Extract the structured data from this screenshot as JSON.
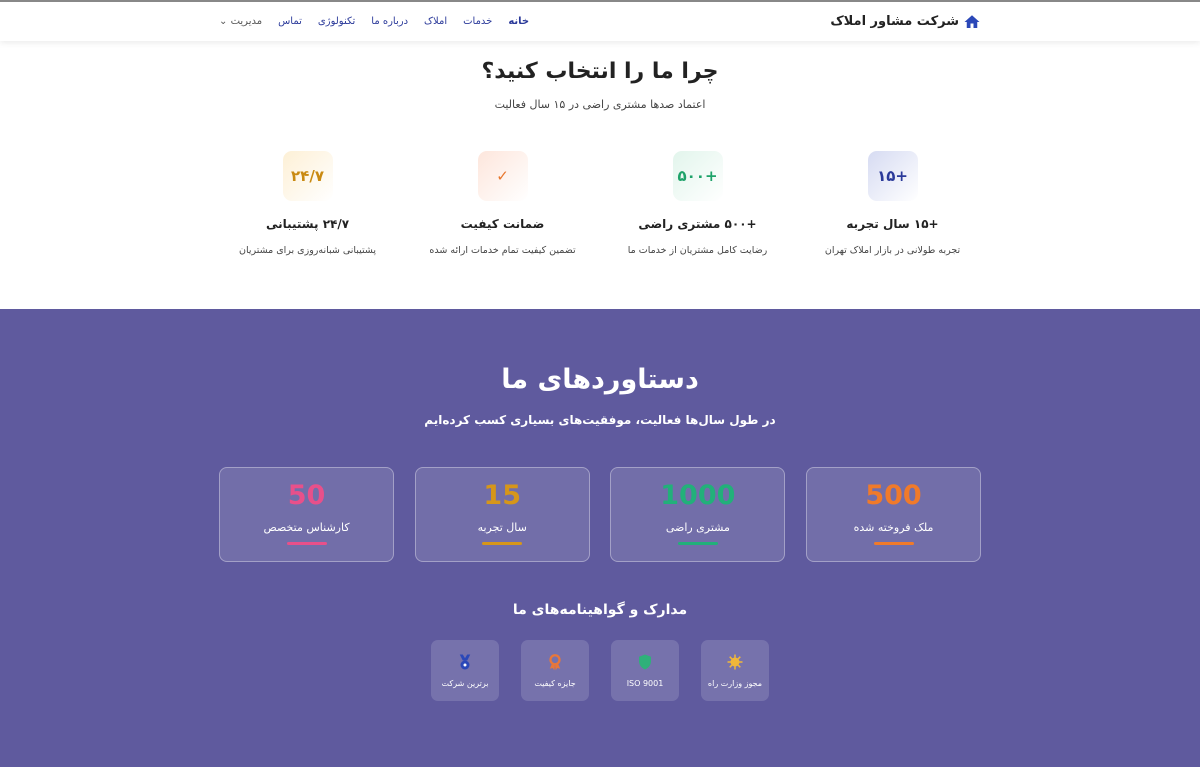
{
  "nav": {
    "brand": "شرکت مشاور املاک",
    "links": [
      "خانه",
      "خدمات",
      "املاک",
      "درباره ما",
      "تکنولوژی",
      "تماس"
    ],
    "dropdown": "مدیریت"
  },
  "why": {
    "title": "چرا ما را انتخاب کنید؟",
    "subtitle": "اعتماد صدها مشتری راضی در ۱۵ سال فعالیت",
    "features": [
      {
        "icon": "+۱۵",
        "title": "+۱۵ سال تجربه",
        "desc": "تجربه طولانی در بازار املاک تهران",
        "color": "#2b3a9a",
        "bg": "#d6dbf2"
      },
      {
        "icon": "+۵۰۰",
        "title": "+۵۰۰ مشتری راضی",
        "desc": "رضایت کامل مشتریان از خدمات ما",
        "color": "#1fa36a",
        "bg": "#e2f5ec"
      },
      {
        "icon": "✓",
        "title": "ضمانت کیفیت",
        "desc": "تضمین کیفیت تمام خدمات ارائه شده",
        "color": "#e8772e",
        "bg": "#fde6dc"
      },
      {
        "icon": "۲۴/۷",
        "title": "۲۴/۷ پشتیبانی",
        "desc": "پشتیبانی شبانه‌روزی برای مشتریان",
        "color": "#c98a12",
        "bg": "#fdf0d6"
      }
    ]
  },
  "achievements": {
    "title": "دستاوردهای ما",
    "subtitle": "در طول سال‌ها فعالیت، موفقیت‌های بسیاری کسب کرده‌ایم",
    "stats": [
      {
        "value": "500",
        "label": "ملک فروخته شده",
        "color": "#f07a2a"
      },
      {
        "value": "1000",
        "label": "مشتری راضی",
        "color": "#22b07a"
      },
      {
        "value": "15",
        "label": "سال تجربه",
        "color": "#d6961a"
      },
      {
        "value": "50",
        "label": "کارشناس متخصص",
        "color": "#e8508a"
      }
    ],
    "certs_title": "مدارک و گواهینامه‌های ما",
    "certs": [
      {
        "label": "مجوز وزارت راه",
        "icon": "sun-badge-icon",
        "color": "#f0b73a"
      },
      {
        "label": "ISO 9001",
        "icon": "shield-icon",
        "color": "#2fb07a"
      },
      {
        "label": "جایزه کیفیت",
        "icon": "award-icon",
        "color": "#e8773a"
      },
      {
        "label": "برترین شرکت",
        "icon": "medal-icon",
        "color": "#2b48b8"
      }
    ]
  }
}
